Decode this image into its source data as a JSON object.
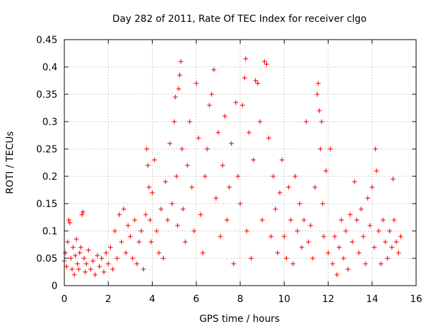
{
  "chart_data": {
    "type": "scatter",
    "title": "Day 282 of 2011, Rate Of TEC Index for receiver clgo",
    "xlabel": "GPS time / hours",
    "ylabel": "ROTI / TECUs",
    "xlim": [
      0,
      16
    ],
    "ylim": [
      0,
      0.45
    ],
    "xticks": [
      0,
      2,
      4,
      6,
      8,
      10,
      12,
      14,
      16
    ],
    "yticks": [
      0,
      0.05,
      0.1,
      0.15,
      0.2,
      0.25,
      0.3,
      0.35,
      0.4,
      0.45
    ],
    "xtick_labels": [
      "0",
      "2",
      "4",
      "6",
      "8",
      "10",
      "12",
      "14",
      "16"
    ],
    "ytick_labels": [
      "0",
      "0.05",
      "0.1",
      "0.15",
      "0.2",
      "0.25",
      "0.3",
      "0.35",
      "0.4",
      "0.45"
    ],
    "grid": true,
    "marker": "+",
    "color": "#ff0000",
    "series": [
      {
        "points": [
          [
            0.0,
            0.045
          ],
          [
            0.05,
            0.06
          ],
          [
            0.1,
            0.035
          ],
          [
            0.15,
            0.08
          ],
          [
            0.2,
            0.12
          ],
          [
            0.25,
            0.115
          ],
          [
            0.3,
            0.05
          ],
          [
            0.35,
            0.03
          ],
          [
            0.4,
            0.07
          ],
          [
            0.45,
            0.02
          ],
          [
            0.5,
            0.055
          ],
          [
            0.55,
            0.085
          ],
          [
            0.6,
            0.04
          ],
          [
            0.65,
            0.03
          ],
          [
            0.7,
            0.06
          ],
          [
            0.75,
            0.07
          ],
          [
            0.8,
            0.13
          ],
          [
            0.85,
            0.135
          ],
          [
            0.9,
            0.05
          ],
          [
            0.95,
            0.025
          ],
          [
            1.0,
            0.04
          ],
          [
            1.1,
            0.065
          ],
          [
            1.2,
            0.03
          ],
          [
            1.3,
            0.045
          ],
          [
            1.4,
            0.02
          ],
          [
            1.5,
            0.055
          ],
          [
            1.6,
            0.035
          ],
          [
            1.7,
            0.05
          ],
          [
            1.8,
            0.025
          ],
          [
            1.9,
            0.06
          ],
          [
            2.0,
            0.04
          ],
          [
            2.1,
            0.07
          ],
          [
            2.2,
            0.03
          ],
          [
            2.3,
            0.1
          ],
          [
            2.4,
            0.05
          ],
          [
            2.5,
            0.13
          ],
          [
            2.6,
            0.08
          ],
          [
            2.7,
            0.14
          ],
          [
            2.8,
            0.06
          ],
          [
            2.9,
            0.11
          ],
          [
            3.0,
            0.09
          ],
          [
            3.1,
            0.05
          ],
          [
            3.2,
            0.12
          ],
          [
            3.3,
            0.04
          ],
          [
            3.4,
            0.08
          ],
          [
            3.5,
            0.1
          ],
          [
            3.6,
            0.03
          ],
          [
            3.7,
            0.13
          ],
          [
            3.75,
            0.25
          ],
          [
            3.8,
            0.22
          ],
          [
            3.85,
            0.18
          ],
          [
            3.9,
            0.12
          ],
          [
            3.95,
            0.08
          ],
          [
            4.0,
            0.17
          ],
          [
            4.1,
            0.23
          ],
          [
            4.2,
            0.1
          ],
          [
            4.3,
            0.06
          ],
          [
            4.4,
            0.14
          ],
          [
            4.5,
            0.05
          ],
          [
            4.6,
            0.19
          ],
          [
            4.7,
            0.12
          ],
          [
            4.8,
            0.26
          ],
          [
            4.9,
            0.15
          ],
          [
            5.0,
            0.3
          ],
          [
            5.05,
            0.345
          ],
          [
            5.1,
            0.2
          ],
          [
            5.15,
            0.11
          ],
          [
            5.2,
            0.36
          ],
          [
            5.25,
            0.385
          ],
          [
            5.3,
            0.41
          ],
          [
            5.35,
            0.25
          ],
          [
            5.4,
            0.14
          ],
          [
            5.5,
            0.08
          ],
          [
            5.6,
            0.22
          ],
          [
            5.7,
            0.3
          ],
          [
            5.8,
            0.18
          ],
          [
            5.9,
            0.1
          ],
          [
            6.0,
            0.37
          ],
          [
            6.1,
            0.27
          ],
          [
            6.2,
            0.13
          ],
          [
            6.3,
            0.06
          ],
          [
            6.4,
            0.2
          ],
          [
            6.5,
            0.25
          ],
          [
            6.6,
            0.33
          ],
          [
            6.7,
            0.35
          ],
          [
            6.8,
            0.395
          ],
          [
            6.9,
            0.16
          ],
          [
            7.0,
            0.28
          ],
          [
            7.1,
            0.09
          ],
          [
            7.2,
            0.22
          ],
          [
            7.3,
            0.31
          ],
          [
            7.4,
            0.12
          ],
          [
            7.5,
            0.18
          ],
          [
            7.6,
            0.26
          ],
          [
            7.7,
            0.04
          ],
          [
            7.8,
            0.335
          ],
          [
            7.9,
            0.2
          ],
          [
            8.0,
            0.15
          ],
          [
            8.1,
            0.33
          ],
          [
            8.2,
            0.38
          ],
          [
            8.25,
            0.415
          ],
          [
            8.3,
            0.1
          ],
          [
            8.4,
            0.28
          ],
          [
            8.5,
            0.05
          ],
          [
            8.6,
            0.23
          ],
          [
            8.7,
            0.375
          ],
          [
            8.8,
            0.37
          ],
          [
            8.9,
            0.3
          ],
          [
            9.0,
            0.12
          ],
          [
            9.1,
            0.41
          ],
          [
            9.2,
            0.405
          ],
          [
            9.3,
            0.27
          ],
          [
            9.4,
            0.09
          ],
          [
            9.5,
            0.2
          ],
          [
            9.6,
            0.14
          ],
          [
            9.7,
            0.06
          ],
          [
            9.8,
            0.17
          ],
          [
            9.9,
            0.23
          ],
          [
            10.0,
            0.09
          ],
          [
            10.1,
            0.05
          ],
          [
            10.2,
            0.18
          ],
          [
            10.3,
            0.12
          ],
          [
            10.4,
            0.04
          ],
          [
            10.5,
            0.2
          ],
          [
            10.6,
            0.1
          ],
          [
            10.7,
            0.15
          ],
          [
            10.8,
            0.07
          ],
          [
            10.9,
            0.12
          ],
          [
            11.0,
            0.3
          ],
          [
            11.1,
            0.08
          ],
          [
            11.2,
            0.11
          ],
          [
            11.3,
            0.05
          ],
          [
            11.4,
            0.18
          ],
          [
            11.5,
            0.35
          ],
          [
            11.55,
            0.37
          ],
          [
            11.6,
            0.32
          ],
          [
            11.65,
            0.25
          ],
          [
            11.7,
            0.3
          ],
          [
            11.75,
            0.15
          ],
          [
            11.8,
            0.09
          ],
          [
            11.9,
            0.21
          ],
          [
            12.0,
            0.06
          ],
          [
            12.1,
            0.25
          ],
          [
            12.2,
            0.04
          ],
          [
            12.3,
            0.09
          ],
          [
            12.4,
            0.02
          ],
          [
            12.5,
            0.07
          ],
          [
            12.6,
            0.12
          ],
          [
            12.7,
            0.05
          ],
          [
            12.8,
            0.1
          ],
          [
            12.9,
            0.03
          ],
          [
            13.0,
            0.13
          ],
          [
            13.1,
            0.08
          ],
          [
            13.2,
            0.19
          ],
          [
            13.3,
            0.12
          ],
          [
            13.4,
            0.06
          ],
          [
            13.5,
            0.14
          ],
          [
            13.6,
            0.09
          ],
          [
            13.7,
            0.04
          ],
          [
            13.8,
            0.16
          ],
          [
            13.9,
            0.11
          ],
          [
            14.0,
            0.18
          ],
          [
            14.1,
            0.07
          ],
          [
            14.15,
            0.25
          ],
          [
            14.2,
            0.21
          ],
          [
            14.3,
            0.1
          ],
          [
            14.4,
            0.04
          ],
          [
            14.5,
            0.12
          ],
          [
            14.6,
            0.08
          ],
          [
            14.7,
            0.05
          ],
          [
            14.8,
            0.1
          ],
          [
            14.9,
            0.07
          ],
          [
            14.95,
            0.195
          ],
          [
            15.0,
            0.12
          ],
          [
            15.1,
            0.08
          ],
          [
            15.2,
            0.06
          ],
          [
            15.3,
            0.09
          ]
        ]
      }
    ]
  }
}
